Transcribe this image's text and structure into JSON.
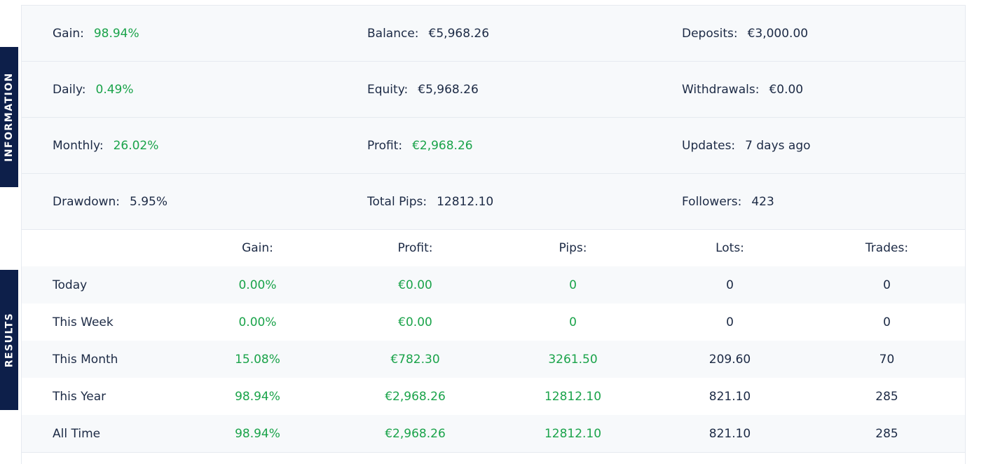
{
  "side_tabs": {
    "information": "INFORMATION",
    "results": "RESULTS"
  },
  "information": [
    [
      {
        "label": "Gain:",
        "value": "98.94%",
        "color": "green"
      },
      {
        "label": "Balance:",
        "value": "€5,968.26",
        "color": "dark"
      },
      {
        "label": "Deposits:",
        "value": "€3,000.00",
        "color": "dark"
      }
    ],
    [
      {
        "label": "Daily:",
        "value": "0.49%",
        "color": "green"
      },
      {
        "label": "Equity:",
        "value": "€5,968.26",
        "color": "dark"
      },
      {
        "label": "Withdrawals:",
        "value": "€0.00",
        "color": "dark"
      }
    ],
    [
      {
        "label": "Monthly:",
        "value": "26.02%",
        "color": "green"
      },
      {
        "label": "Profit:",
        "value": "€2,968.26",
        "color": "green"
      },
      {
        "label": "Updates:",
        "value": "7 days ago",
        "color": "dark"
      }
    ],
    [
      {
        "label": "Drawdown:",
        "value": "5.95%",
        "color": "dark"
      },
      {
        "label": "Total Pips:",
        "value": "12812.10",
        "color": "dark"
      },
      {
        "label": "Followers:",
        "value": "423",
        "color": "dark"
      }
    ]
  ],
  "results": {
    "headers": [
      "Gain:",
      "Profit:",
      "Pips:",
      "Lots:",
      "Trades:"
    ],
    "rows": [
      {
        "period": "Today",
        "gain": "0.00%",
        "profit": "€0.00",
        "pips": "0",
        "lots": "0",
        "trades": "0"
      },
      {
        "period": "This Week",
        "gain": "0.00%",
        "profit": "€0.00",
        "pips": "0",
        "lots": "0",
        "trades": "0"
      },
      {
        "period": "This Month",
        "gain": "15.08%",
        "profit": "€782.30",
        "pips": "3261.50",
        "lots": "209.60",
        "trades": "70"
      },
      {
        "period": "This Year",
        "gain": "98.94%",
        "profit": "€2,968.26",
        "pips": "12812.10",
        "lots": "821.10",
        "trades": "285"
      },
      {
        "period": "All Time",
        "gain": "98.94%",
        "profit": "€2,968.26",
        "pips": "12812.10",
        "lots": "821.10",
        "trades": "285"
      }
    ]
  },
  "colors": {
    "green": "#1aa34a",
    "dark_text": "#1c2a45",
    "navy_tab": "#0d1f4a",
    "row_bg": "#f7f9fb"
  }
}
